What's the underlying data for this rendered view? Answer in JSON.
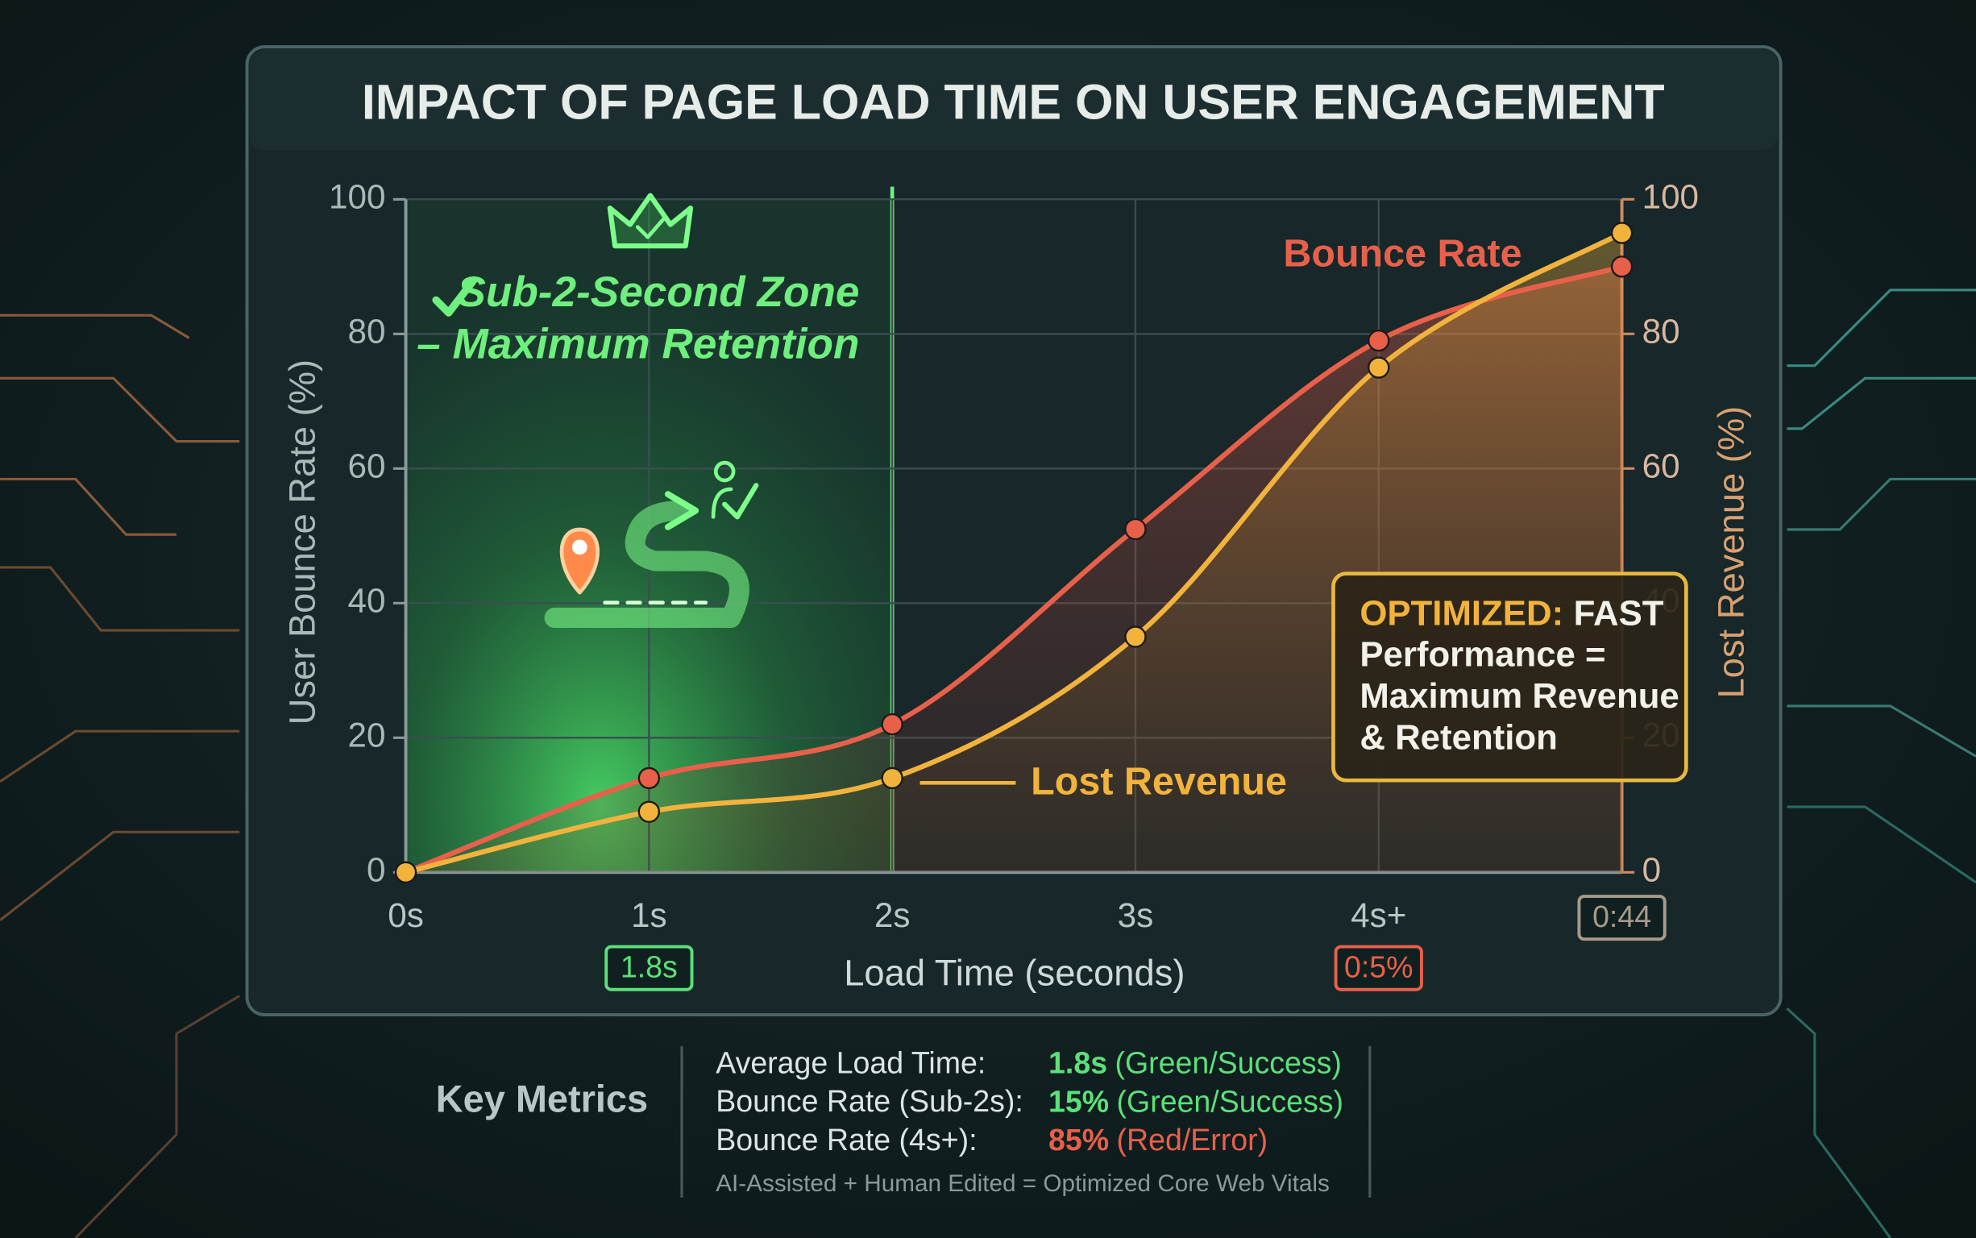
{
  "chart_data": {
    "type": "line",
    "title": "IMPACT OF PAGE LOAD TIME ON USER ENGAGEMENT",
    "x_label": "Load Time (seconds)",
    "y_label": "User Bounce Rate (%)",
    "y2_label": "Lost Revenue (%)",
    "categories": [
      "0s",
      "1s",
      "2s",
      "3s",
      "4s+",
      null
    ],
    "series": [
      {
        "name": "Bounce Rate",
        "color": "#e8604a",
        "values": [
          0,
          14,
          22,
          51,
          79,
          90
        ]
      },
      {
        "name": "Lost Revenue",
        "color": "#f2b33d",
        "values": [
          0,
          9,
          14,
          35,
          75,
          95
        ],
        "axis": "y2"
      }
    ],
    "ylim": [
      0,
      100
    ],
    "yticks": [
      0,
      20,
      40,
      60,
      80,
      100
    ],
    "y2lim": [
      0,
      100
    ],
    "y2ticks": [
      0,
      20,
      40,
      60,
      80,
      100
    ],
    "grid": true,
    "zone": {
      "label": "Sub-2-Second Zone",
      "sublabel": "– Maximum Retention"
    },
    "badges": [
      {
        "label": "1.8s",
        "color": "#5be07a"
      },
      {
        "label": "0:5%",
        "color": "#e8604a"
      },
      {
        "label": "0:44",
        "color": "#a89a88"
      }
    ],
    "callout": {
      "highlight": "OPTIMIZED:",
      "lines": [
        "FAST",
        "Performance =",
        "Maximum Revenue",
        "& Retention"
      ]
    }
  },
  "key_metrics": {
    "title": "Key Metrics",
    "rows": [
      {
        "label": "Average Load Time:",
        "value": "1.8s",
        "note": "(Green/Success)",
        "color": "#5be07a"
      },
      {
        "label": "Bounce Rate (Sub-2s):",
        "value": "15%",
        "note": "(Green/Success)",
        "color": "#5be07a"
      },
      {
        "label": "Bounce Rate (4s+):",
        "value": "85%",
        "note": "(Red/Error)",
        "color": "#e8604a"
      }
    ],
    "footnote": "AI-Assisted + Human Edited = Optimized Core Web Vitals"
  }
}
